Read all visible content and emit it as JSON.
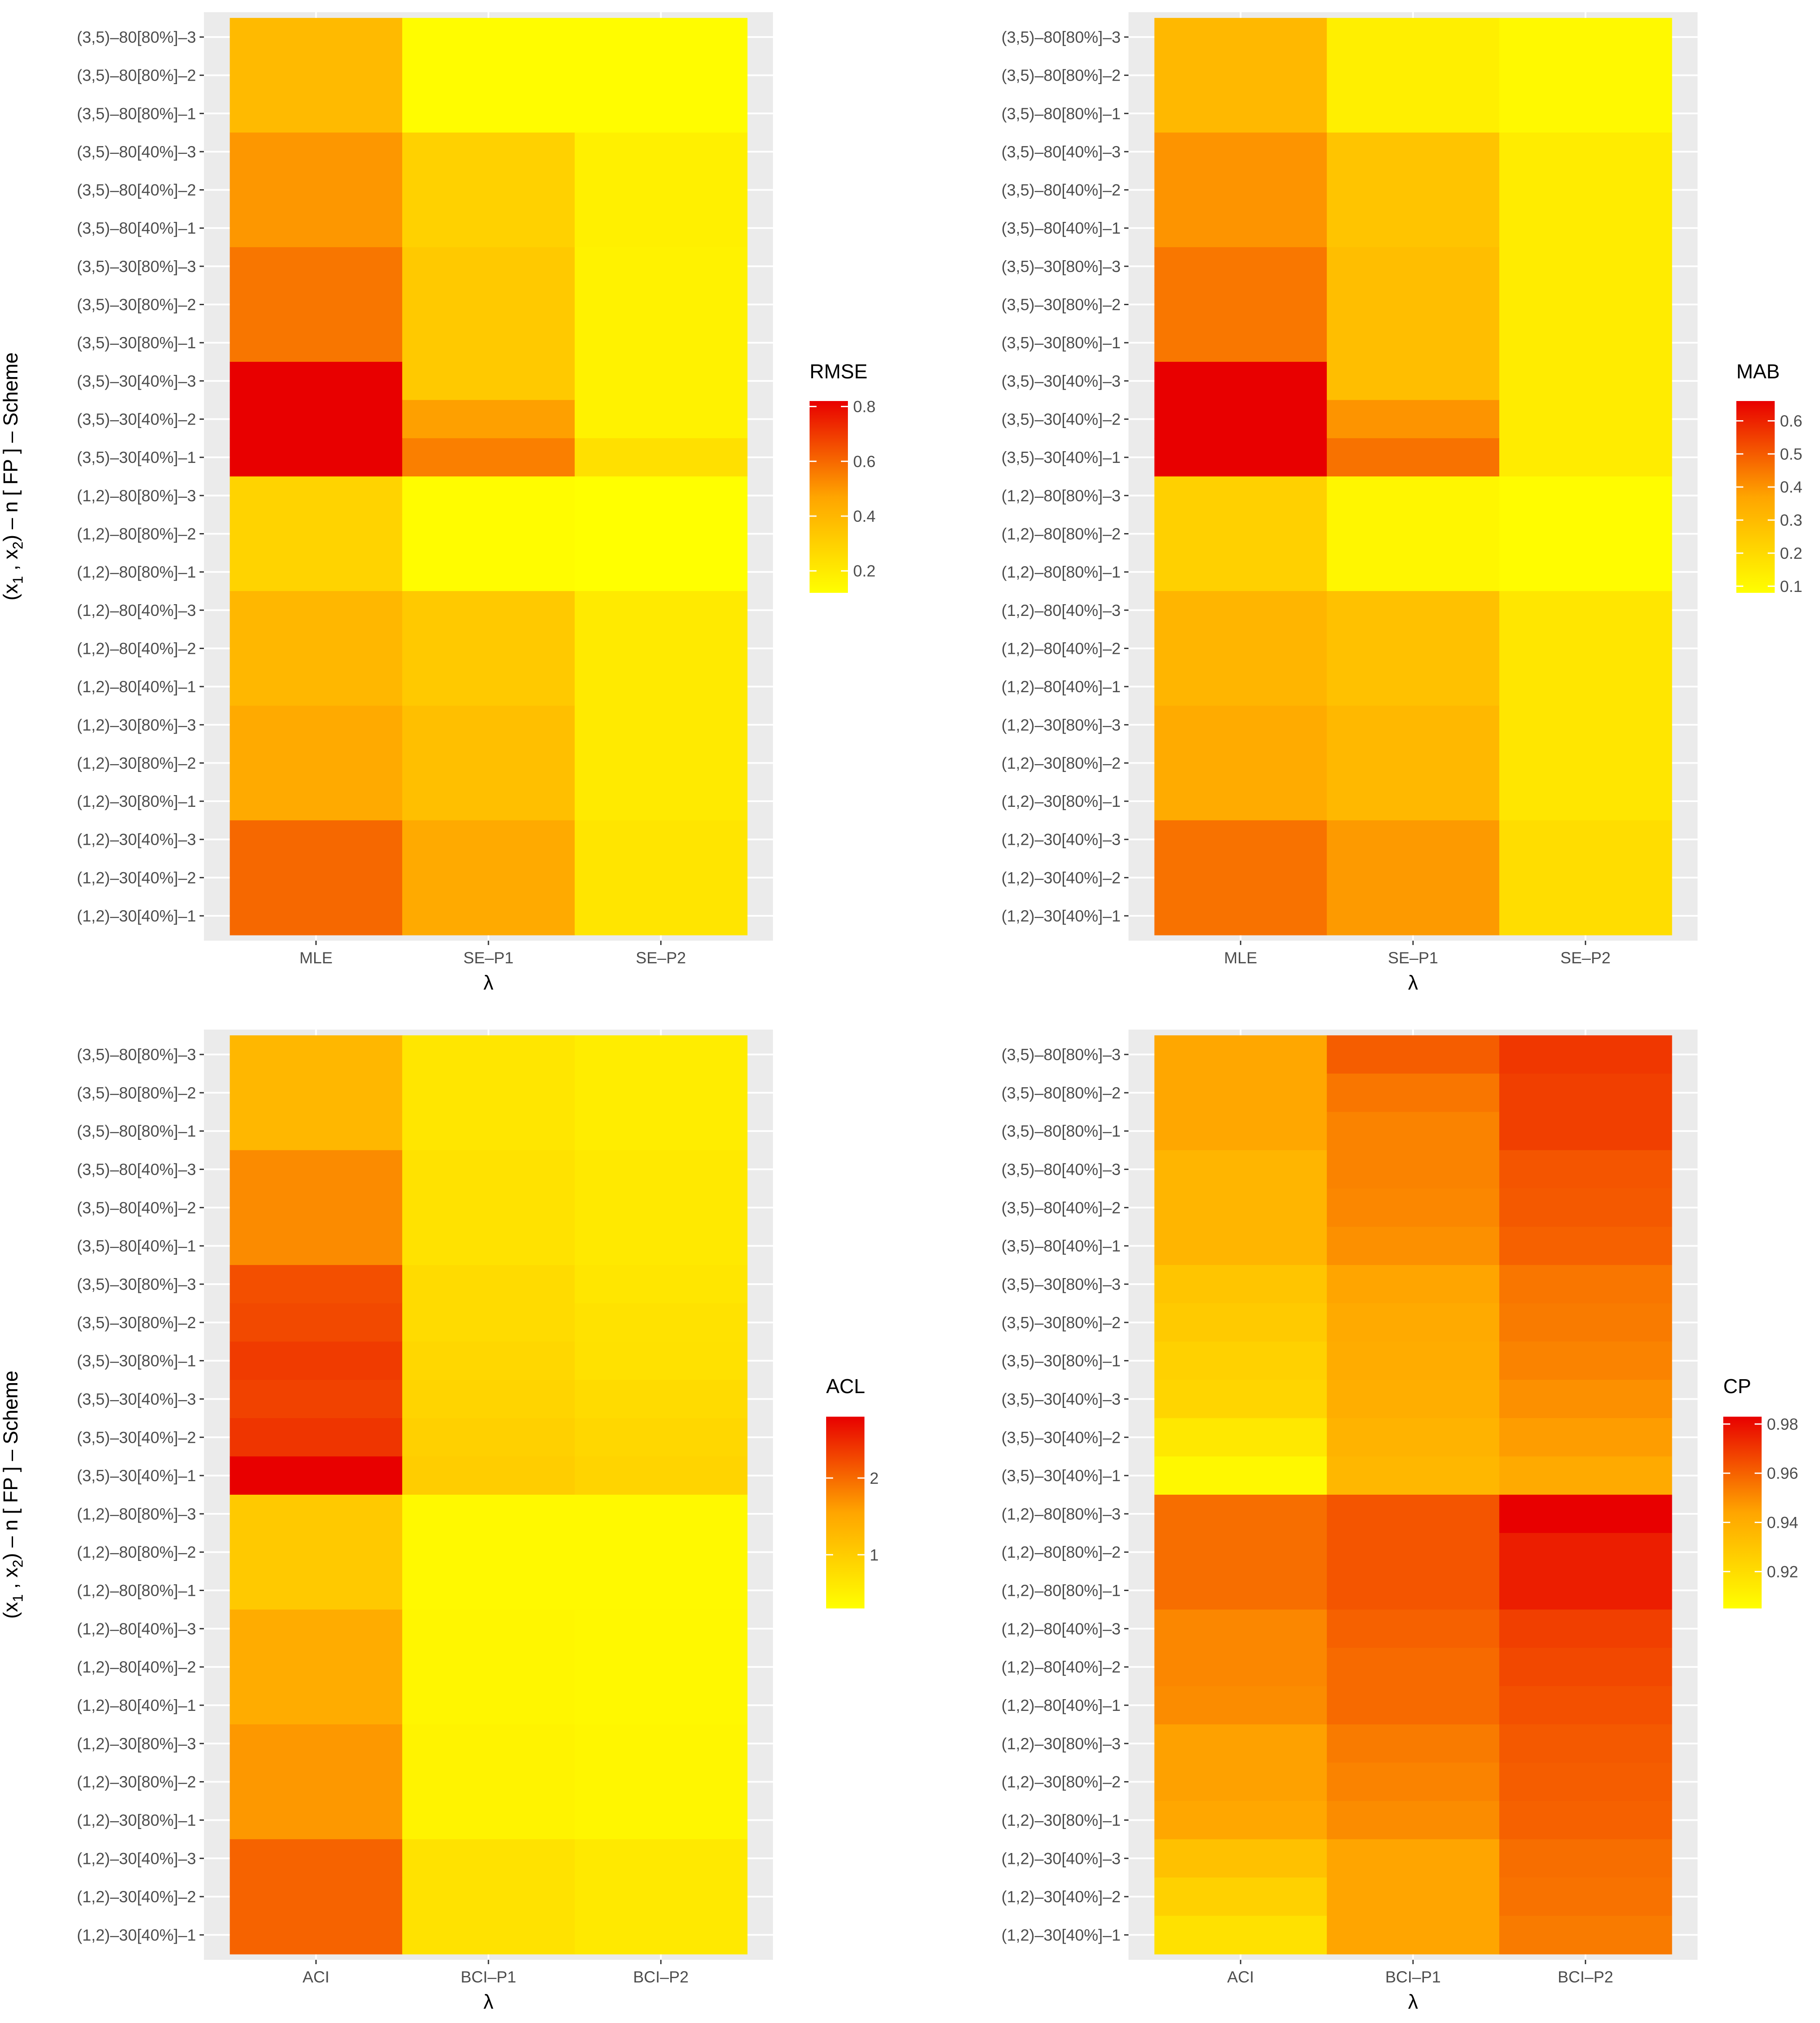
{
  "chart_data": [
    {
      "type": "heatmap",
      "metric": "RMSE",
      "legend_title": "RMSE",
      "xlabel": "λ",
      "ylabel": "(x₁, x₂) – n [ FP ] – Scheme",
      "ylabel_parts": {
        "open": "(x",
        "sub1": "1",
        "comma": " , x",
        "sub2": "2",
        "rest": ") – n [ FP ] – Scheme"
      },
      "x_categories": [
        "MLE",
        "SE–P1",
        "SE–P2"
      ],
      "y_categories": [
        "(3,5)–80[80%]–3",
        "(3,5)–80[80%]–2",
        "(3,5)–80[80%]–1",
        "(3,5)–80[40%]–3",
        "(3,5)–80[40%]–2",
        "(3,5)–80[40%]–1",
        "(3,5)–30[80%]–3",
        "(3,5)–30[80%]–2",
        "(3,5)–30[80%]–1",
        "(3,5)–30[40%]–3",
        "(3,5)–30[40%]–2",
        "(3,5)–30[40%]–1",
        "(1,2)–80[80%]–3",
        "(1,2)–80[80%]–2",
        "(1,2)–80[80%]–1",
        "(1,2)–80[40%]–3",
        "(1,2)–80[40%]–2",
        "(1,2)–80[40%]–1",
        "(1,2)–30[80%]–3",
        "(1,2)–30[80%]–2",
        "(1,2)–30[80%]–1",
        "(1,2)–30[40%]–3",
        "(1,2)–30[40%]–2",
        "(1,2)–30[40%]–1"
      ],
      "values": [
        [
          0.39,
          0.13,
          0.13
        ],
        [
          0.39,
          0.13,
          0.13
        ],
        [
          0.39,
          0.13,
          0.13
        ],
        [
          0.5,
          0.3,
          0.18
        ],
        [
          0.5,
          0.3,
          0.18
        ],
        [
          0.5,
          0.3,
          0.18
        ],
        [
          0.57,
          0.33,
          0.17
        ],
        [
          0.57,
          0.33,
          0.17
        ],
        [
          0.57,
          0.33,
          0.17
        ],
        [
          0.82,
          0.33,
          0.17
        ],
        [
          0.82,
          0.48,
          0.17
        ],
        [
          0.82,
          0.55,
          0.24
        ],
        [
          0.29,
          0.13,
          0.12
        ],
        [
          0.29,
          0.13,
          0.12
        ],
        [
          0.29,
          0.13,
          0.12
        ],
        [
          0.4,
          0.33,
          0.2
        ],
        [
          0.4,
          0.33,
          0.2
        ],
        [
          0.4,
          0.33,
          0.2
        ],
        [
          0.45,
          0.37,
          0.2
        ],
        [
          0.45,
          0.37,
          0.2
        ],
        [
          0.45,
          0.37,
          0.2
        ],
        [
          0.6,
          0.45,
          0.22
        ],
        [
          0.6,
          0.45,
          0.22
        ],
        [
          0.6,
          0.45,
          0.22
        ]
      ],
      "scale_range": [
        0.12,
        0.82
      ],
      "legend_ticks": [
        0.2,
        0.4,
        0.6,
        0.8
      ],
      "legend_tick_labels": [
        "0.2",
        "0.4",
        "0.6",
        "0.8"
      ]
    },
    {
      "type": "heatmap",
      "metric": "MAB",
      "legend_title": "MAB",
      "xlabel": "λ",
      "ylabel": "(x₁, x₂) – n [ FP ] – Scheme",
      "ylabel_parts": {
        "open": "(x",
        "sub1": "1",
        "comma": " , x",
        "sub2": "2",
        "rest": ") – n [ FP ] – Scheme"
      },
      "x_categories": [
        "MLE",
        "SE–P1",
        "SE–P2"
      ],
      "y_categories": [
        "(3,5)–80[80%]–3",
        "(3,5)–80[80%]–2",
        "(3,5)–80[80%]–1",
        "(3,5)–80[40%]–3",
        "(3,5)–80[40%]–2",
        "(3,5)–80[40%]–1",
        "(3,5)–30[80%]–3",
        "(3,5)–30[80%]–2",
        "(3,5)–30[80%]–1",
        "(3,5)–30[40%]–3",
        "(3,5)–30[40%]–2",
        "(3,5)–30[40%]–1",
        "(1,2)–80[80%]–3",
        "(1,2)–80[80%]–2",
        "(1,2)–80[80%]–1",
        "(1,2)–80[40%]–3",
        "(1,2)–80[40%]–2",
        "(1,2)–80[40%]–1",
        "(1,2)–30[80%]–3",
        "(1,2)–30[80%]–2",
        "(1,2)–30[80%]–1",
        "(1,2)–30[40%]–3",
        "(1,2)–30[40%]–2",
        "(1,2)–30[40%]–1"
      ],
      "values": [
        [
          0.31,
          0.13,
          0.1
        ],
        [
          0.31,
          0.13,
          0.1
        ],
        [
          0.31,
          0.13,
          0.1
        ],
        [
          0.4,
          0.27,
          0.14
        ],
        [
          0.4,
          0.27,
          0.14
        ],
        [
          0.4,
          0.27,
          0.14
        ],
        [
          0.45,
          0.29,
          0.14
        ],
        [
          0.45,
          0.29,
          0.14
        ],
        [
          0.45,
          0.29,
          0.14
        ],
        [
          0.66,
          0.29,
          0.14
        ],
        [
          0.66,
          0.4,
          0.14
        ],
        [
          0.66,
          0.46,
          0.14
        ],
        [
          0.23,
          0.11,
          0.09
        ],
        [
          0.23,
          0.11,
          0.09
        ],
        [
          0.23,
          0.11,
          0.09
        ],
        [
          0.32,
          0.28,
          0.16
        ],
        [
          0.32,
          0.28,
          0.16
        ],
        [
          0.32,
          0.28,
          0.16
        ],
        [
          0.35,
          0.31,
          0.16
        ],
        [
          0.35,
          0.31,
          0.16
        ],
        [
          0.35,
          0.31,
          0.16
        ],
        [
          0.46,
          0.39,
          0.19
        ],
        [
          0.46,
          0.39,
          0.19
        ],
        [
          0.46,
          0.39,
          0.19
        ]
      ],
      "scale_range": [
        0.08,
        0.66
      ],
      "legend_ticks": [
        0.1,
        0.2,
        0.3,
        0.4,
        0.5,
        0.6
      ],
      "legend_tick_labels": [
        "0.1",
        "0.2",
        "0.3",
        "0.4",
        "0.5",
        "0.6"
      ]
    },
    {
      "type": "heatmap",
      "metric": "ACL",
      "legend_title": "ACL",
      "xlabel": "λ",
      "ylabel": "(x₁, x₂) – n [ FP ] – Scheme",
      "ylabel_parts": {
        "open": "(x",
        "sub1": "1",
        "comma": " , x",
        "sub2": "2",
        "rest": ") – n [ FP ] – Scheme"
      },
      "x_categories": [
        "ACI",
        "BCI–P1",
        "BCI–P2"
      ],
      "y_categories": [
        "(3,5)–80[80%]–3",
        "(3,5)–80[80%]–2",
        "(3,5)–80[80%]–1",
        "(3,5)–80[40%]–3",
        "(3,5)–80[40%]–2",
        "(3,5)–80[40%]–1",
        "(3,5)–30[80%]–3",
        "(3,5)–30[80%]–2",
        "(3,5)–30[80%]–1",
        "(3,5)–30[40%]–3",
        "(3,5)–30[40%]–2",
        "(3,5)–30[40%]–1",
        "(1,2)–80[80%]–3",
        "(1,2)–80[80%]–2",
        "(1,2)–80[80%]–1",
        "(1,2)–80[40%]–3",
        "(1,2)–80[40%]–2",
        "(1,2)–80[40%]–1",
        "(1,2)–30[80%]–3",
        "(1,2)–30[80%]–2",
        "(1,2)–30[80%]–1",
        "(1,2)–30[40%]–3",
        "(1,2)–30[40%]–2",
        "(1,2)–30[40%]–1"
      ],
      "values": [
        [
          1.3,
          0.65,
          0.55
        ],
        [
          1.3,
          0.65,
          0.55
        ],
        [
          1.3,
          0.65,
          0.55
        ],
        [
          1.75,
          0.7,
          0.6
        ],
        [
          1.75,
          0.7,
          0.6
        ],
        [
          1.75,
          0.7,
          0.6
        ],
        [
          2.2,
          0.8,
          0.65
        ],
        [
          2.25,
          0.8,
          0.7
        ],
        [
          2.35,
          0.85,
          0.72
        ],
        [
          2.3,
          0.9,
          0.8
        ],
        [
          2.4,
          0.95,
          0.85
        ],
        [
          2.8,
          1.0,
          0.9
        ],
        [
          1.05,
          0.38,
          0.38
        ],
        [
          1.05,
          0.38,
          0.38
        ],
        [
          1.05,
          0.38,
          0.38
        ],
        [
          1.45,
          0.42,
          0.4
        ],
        [
          1.45,
          0.42,
          0.4
        ],
        [
          1.45,
          0.42,
          0.4
        ],
        [
          1.65,
          0.46,
          0.42
        ],
        [
          1.65,
          0.46,
          0.42
        ],
        [
          1.65,
          0.46,
          0.42
        ],
        [
          2.05,
          0.7,
          0.6
        ],
        [
          2.05,
          0.7,
          0.6
        ],
        [
          2.05,
          0.7,
          0.6
        ]
      ],
      "scale_range": [
        0.3,
        2.8
      ],
      "legend_ticks": [
        1,
        2
      ],
      "legend_tick_labels": [
        "1",
        "2"
      ]
    },
    {
      "type": "heatmap",
      "metric": "CP",
      "legend_title": "CP",
      "xlabel": "λ",
      "ylabel": "(x₁, x₂) – n [ FP ] – Scheme",
      "ylabel_parts": {
        "open": "(x",
        "sub1": "1",
        "comma": " , x",
        "sub2": "2",
        "rest": ") – n [ FP ] – Scheme"
      },
      "x_categories": [
        "ACI",
        "BCI–P1",
        "BCI–P2"
      ],
      "y_categories": [
        "(3,5)–80[80%]–3",
        "(3,5)–80[80%]–2",
        "(3,5)–80[80%]–1",
        "(3,5)–80[40%]–3",
        "(3,5)–80[40%]–2",
        "(3,5)–80[40%]–1",
        "(3,5)–30[80%]–3",
        "(3,5)–30[80%]–2",
        "(3,5)–30[80%]–1",
        "(3,5)–30[40%]–3",
        "(3,5)–30[40%]–2",
        "(3,5)–30[40%]–1",
        "(1,2)–80[80%]–3",
        "(1,2)–80[80%]–2",
        "(1,2)–80[80%]–1",
        "(1,2)–80[40%]–3",
        "(1,2)–80[40%]–2",
        "(1,2)–80[40%]–1",
        "(1,2)–30[80%]–3",
        "(1,2)–30[80%]–2",
        "(1,2)–30[80%]–1",
        "(1,2)–30[40%]–3",
        "(1,2)–30[40%]–2",
        "(1,2)–30[40%]–1"
      ],
      "values": [
        [
          0.943,
          0.961,
          0.97
        ],
        [
          0.943,
          0.955,
          0.968
        ],
        [
          0.943,
          0.952,
          0.968
        ],
        [
          0.937,
          0.952,
          0.963
        ],
        [
          0.937,
          0.951,
          0.962
        ],
        [
          0.937,
          0.949,
          0.96
        ],
        [
          0.93,
          0.944,
          0.955
        ],
        [
          0.928,
          0.942,
          0.954
        ],
        [
          0.925,
          0.941,
          0.952
        ],
        [
          0.923,
          0.94,
          0.949
        ],
        [
          0.915,
          0.938,
          0.946
        ],
        [
          0.908,
          0.936,
          0.942
        ],
        [
          0.957,
          0.963,
          0.983
        ],
        [
          0.957,
          0.963,
          0.976
        ],
        [
          0.957,
          0.963,
          0.976
        ],
        [
          0.951,
          0.96,
          0.968
        ],
        [
          0.951,
          0.958,
          0.966
        ],
        [
          0.95,
          0.958,
          0.964
        ],
        [
          0.945,
          0.954,
          0.962
        ],
        [
          0.945,
          0.952,
          0.961
        ],
        [
          0.943,
          0.95,
          0.96
        ],
        [
          0.932,
          0.944,
          0.957
        ],
        [
          0.925,
          0.944,
          0.956
        ],
        [
          0.918,
          0.944,
          0.954
        ]
      ],
      "scale_range": [
        0.905,
        0.983
      ],
      "legend_ticks": [
        0.92,
        0.94,
        0.96,
        0.98
      ],
      "legend_tick_labels": [
        "0.92",
        "0.94",
        "0.96",
        "0.98"
      ]
    }
  ]
}
